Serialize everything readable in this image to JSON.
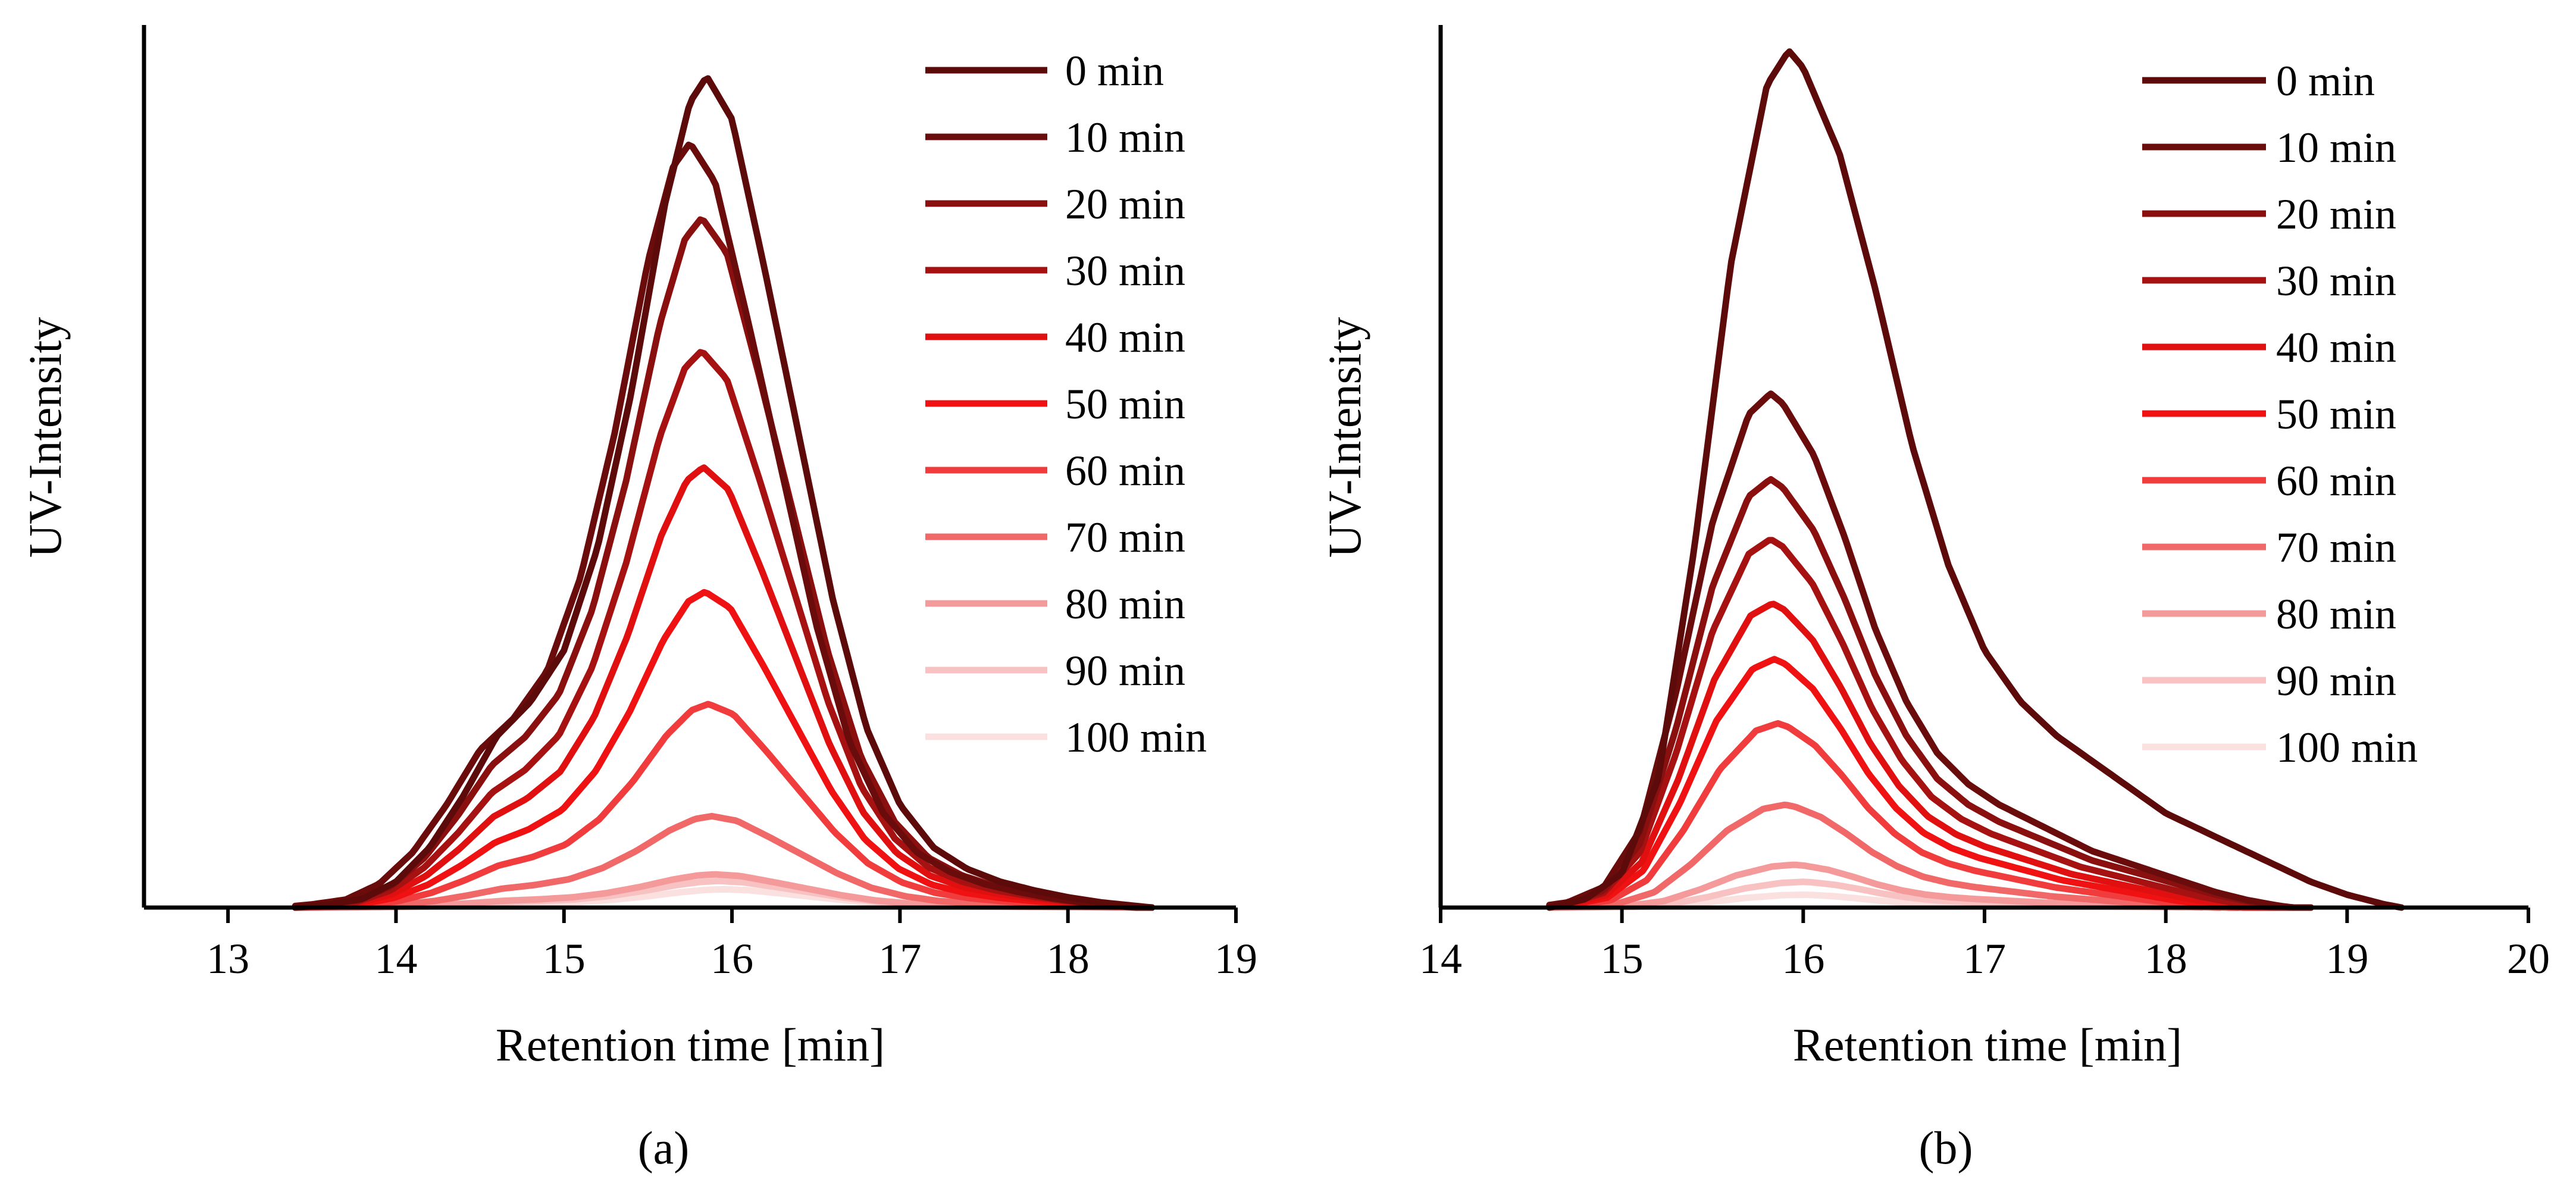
{
  "chart_data": [
    {
      "type": "line",
      "panel_label": "(a)",
      "xlabel": "Retention time [min]",
      "ylabel": "UV-Intensity",
      "xlim": [
        12.5,
        19
      ],
      "ylim": [
        0,
        1.03
      ],
      "xticks": [
        "13",
        "14",
        "15",
        "16",
        "17",
        "18",
        "19"
      ],
      "legend_position": "top-right",
      "profile": {
        "x": [
          13.4,
          13.6,
          13.8,
          14.0,
          14.2,
          14.4,
          14.6,
          14.8,
          15.0,
          15.2,
          15.4,
          15.6,
          15.75,
          15.85,
          16.0,
          16.2,
          16.4,
          16.6,
          16.8,
          17.0,
          17.2,
          17.4,
          17.6,
          17.8,
          18.0,
          18.2,
          18.4,
          18.5
        ],
        "y": [
          0.0,
          0.004,
          0.01,
          0.03,
          0.07,
          0.13,
          0.2,
          0.24,
          0.3,
          0.42,
          0.6,
          0.82,
          0.94,
          0.97,
          0.92,
          0.74,
          0.55,
          0.36,
          0.21,
          0.12,
          0.07,
          0.045,
          0.03,
          0.02,
          0.012,
          0.006,
          0.002,
          0.0
        ]
      },
      "series": [
        {
          "name": "0 min",
          "color": "#5c0a0a",
          "peak_x": 15.85,
          "peak_y": 1.0
        },
        {
          "name": "10 min",
          "color": "#6b0c0c",
          "peak_x": 15.75,
          "peak_y": 0.92
        },
        {
          "name": "20 min",
          "color": "#8a1010",
          "peak_x": 15.82,
          "peak_y": 0.83
        },
        {
          "name": "30 min",
          "color": "#a61212",
          "peak_x": 15.82,
          "peak_y": 0.67
        },
        {
          "name": "40 min",
          "color": "#e01010",
          "peak_x": 15.83,
          "peak_y": 0.53
        },
        {
          "name": "50 min",
          "color": "#f01212",
          "peak_x": 15.84,
          "peak_y": 0.38
        },
        {
          "name": "60 min",
          "color": "#f03c3c",
          "peak_x": 15.86,
          "peak_y": 0.245
        },
        {
          "name": "70 min",
          "color": "#f06868",
          "peak_x": 15.88,
          "peak_y": 0.11
        },
        {
          "name": "80 min",
          "color": "#f59a9a",
          "peak_x": 15.9,
          "peak_y": 0.04
        },
        {
          "name": "90 min",
          "color": "#f8c2c2",
          "peak_x": 15.92,
          "peak_y": 0.032
        },
        {
          "name": "100 min",
          "color": "#fbe0e0",
          "peak_x": 15.95,
          "peak_y": 0.022
        }
      ]
    },
    {
      "type": "line",
      "panel_label": "(b)",
      "xlabel": "Retention time [min]",
      "ylabel": "UV-Intensity",
      "xlim": [
        14,
        20
      ],
      "ylim": [
        0,
        1.03
      ],
      "xticks": [
        "14",
        "15",
        "16",
        "17",
        "18",
        "19",
        "20"
      ],
      "legend_position": "top-right",
      "profile": {
        "x": [
          14.6,
          14.8,
          15.0,
          15.2,
          15.4,
          15.6,
          15.8,
          15.92,
          16.0,
          16.2,
          16.4,
          16.6,
          16.8,
          17.0,
          17.2,
          17.4,
          17.6,
          17.8,
          18.0,
          18.2,
          18.4,
          18.6,
          18.8,
          19.0,
          19.2,
          19.3
        ],
        "y": [
          0.0,
          0.01,
          0.04,
          0.15,
          0.42,
          0.75,
          0.96,
          1.0,
          0.98,
          0.88,
          0.72,
          0.54,
          0.4,
          0.3,
          0.24,
          0.2,
          0.17,
          0.14,
          0.11,
          0.09,
          0.07,
          0.05,
          0.03,
          0.015,
          0.004,
          0.0
        ]
      },
      "series": [
        {
          "name": "0 min",
          "color": "#5c0a0a",
          "peak_x": 15.92,
          "peak_y": 1.0,
          "end_x": 19.3
        },
        {
          "name": "10 min",
          "color": "#6b0c0c",
          "peak_x": 15.82,
          "peak_y": 0.6,
          "end_x": 18.8
        },
        {
          "name": "20 min",
          "color": "#8a1010",
          "peak_x": 15.82,
          "peak_y": 0.5,
          "end_x": 18.8
        },
        {
          "name": "30 min",
          "color": "#a61212",
          "peak_x": 15.82,
          "peak_y": 0.43,
          "end_x": 18.7
        },
        {
          "name": "40 min",
          "color": "#e01010",
          "peak_x": 15.83,
          "peak_y": 0.355,
          "end_x": 18.6
        },
        {
          "name": "50 min",
          "color": "#f01212",
          "peak_x": 15.84,
          "peak_y": 0.29,
          "end_x": 18.5
        },
        {
          "name": "60 min",
          "color": "#f03c3c",
          "peak_x": 15.86,
          "peak_y": 0.215,
          "end_x": 18.4
        },
        {
          "name": "70 min",
          "color": "#f06868",
          "peak_x": 15.9,
          "peak_y": 0.12,
          "end_x": 18.3
        },
        {
          "name": "80 min",
          "color": "#f59a9a",
          "peak_x": 15.95,
          "peak_y": 0.05,
          "end_x": 18.2
        },
        {
          "name": "90 min",
          "color": "#f8c2c2",
          "peak_x": 16.0,
          "peak_y": 0.03,
          "end_x": 18.1
        },
        {
          "name": "100 min",
          "color": "#fbe0e0",
          "peak_x": 16.0,
          "peak_y": 0.015,
          "end_x": 18.0
        }
      ]
    }
  ]
}
